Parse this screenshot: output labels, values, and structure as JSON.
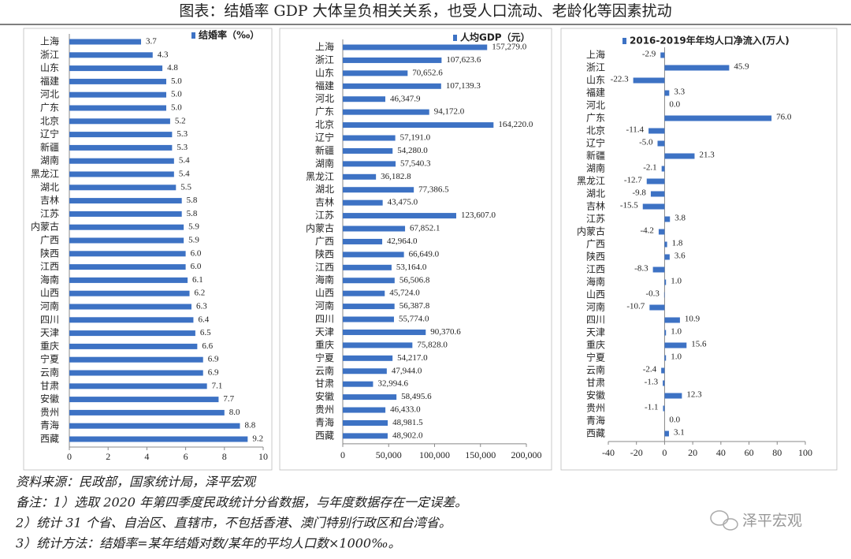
{
  "title": "图表：结婚率 GDP 大体呈负相关关系，也受人口流动、老龄化等因素扰动",
  "notes": [
    "资料来源：民政部，国家统计局，泽平宏观",
    "备注：1）选取 2020 年第四季度民政统计分省数据，与年度数据存在一定误差。",
    "2）统计 31 个省、自治区、直辖市，不包括香港、澳门特别行政区和台湾省。",
    "3）统计方法：结婚率=某年结婚对数/某年的平均人口数×1000‰。"
  ],
  "watermark": "泽平宏观",
  "chart_data": [
    {
      "type": "bar",
      "orientation": "horizontal",
      "categories": [
        "上海",
        "浙江",
        "山东",
        "福建",
        "河北",
        "广东",
        "北京",
        "辽宁",
        "新疆",
        "湖南",
        "黑龙江",
        "湖北",
        "吉林",
        "江苏",
        "内蒙古",
        "广西",
        "陕西",
        "江西",
        "海南",
        "山西",
        "河南",
        "四川",
        "天津",
        "重庆",
        "宁夏",
        "云南",
        "甘肃",
        "安徽",
        "贵州",
        "青海",
        "西藏"
      ],
      "series": [
        {
          "name": "结婚率（‰）",
          "color": "#3d72c4",
          "values": [
            3.7,
            4.3,
            4.8,
            5.0,
            5.0,
            5.0,
            5.2,
            5.3,
            5.3,
            5.4,
            5.4,
            5.5,
            5.8,
            5.8,
            5.9,
            5.9,
            6.0,
            6.0,
            6.1,
            6.2,
            6.3,
            6.4,
            6.5,
            6.6,
            6.9,
            6.9,
            7.1,
            7.7,
            8.0,
            8.8,
            9.2
          ],
          "value_labels": [
            "3.7",
            "4.3",
            "4.8",
            "5.0",
            "5.0",
            "5.0",
            "5.2",
            "5.3",
            "5.3",
            "5.4",
            "5.4",
            "5.5",
            "5.8",
            "5.8",
            "5.9",
            "5.9",
            "6.0",
            "6.0",
            "6.1",
            "6.2",
            "6.3",
            "6.4",
            "6.5",
            "6.6",
            "6.9",
            "6.9",
            "7.1",
            "7.7",
            "8.0",
            "8.8",
            "9.2"
          ]
        }
      ],
      "xlim": [
        0,
        10
      ],
      "xticks": [
        0,
        2,
        4,
        6,
        8,
        10
      ]
    },
    {
      "type": "bar",
      "orientation": "horizontal",
      "categories": [
        "上海",
        "浙江",
        "山东",
        "福建",
        "河北",
        "广东",
        "北京",
        "辽宁",
        "新疆",
        "湖南",
        "黑龙江",
        "湖北",
        "吉林",
        "江苏",
        "内蒙古",
        "广西",
        "陕西",
        "江西",
        "海南",
        "山西",
        "河南",
        "四川",
        "天津",
        "重庆",
        "宁夏",
        "云南",
        "甘肃",
        "安徽",
        "贵州",
        "青海",
        "西藏"
      ],
      "series": [
        {
          "name": "人均GDP（元）",
          "color": "#3d72c4",
          "values": [
            157279.0,
            107623.6,
            70652.6,
            107139.3,
            46347.9,
            94172.0,
            164220.0,
            57191.0,
            54280.0,
            57540.3,
            36182.8,
            77386.5,
            43475.0,
            123607.0,
            67852.1,
            42964.0,
            66649.0,
            53164.0,
            56506.8,
            45724.0,
            56387.8,
            55774.0,
            90370.6,
            75828.0,
            54217.0,
            47944.0,
            32994.6,
            58495.6,
            46433.0,
            48981.5,
            48902.0
          ],
          "value_labels": [
            "157,279.0",
            "107,623.6",
            "70,652.6",
            "107,139.3",
            "46,347.9",
            "94,172.0",
            "164,220.0",
            "57,191.0",
            "54,280.0",
            "57,540.3",
            "36,182.8",
            "77,386.5",
            "43,475.0",
            "123,607.0",
            "67,852.1",
            "42,964.0",
            "66,649.0",
            "53,164.0",
            "56,506.8",
            "45,724.0",
            "56,387.8",
            "55,774.0",
            "90,370.6",
            "75,828.0",
            "54,217.0",
            "47,944.0",
            "32,994.6",
            "58,495.6",
            "46,433.0",
            "48,981.5",
            "48,902.0"
          ]
        }
      ],
      "xlim": [
        0,
        200000
      ],
      "xticks": [
        0,
        {
          "value": 50000,
          "label": "50,000"
        },
        {
          "value": 100000,
          "label": "100,000"
        },
        {
          "value": 150000,
          "label": "150,000"
        },
        {
          "value": 200000,
          "label": "200,000"
        }
      ]
    },
    {
      "type": "bar",
      "orientation": "horizontal",
      "categories": [
        "上海",
        "浙江",
        "山东",
        "福建",
        "河北",
        "广东",
        "北京",
        "辽宁",
        "新疆",
        "湖南",
        "黑龙江",
        "湖北",
        "吉林",
        "江苏",
        "内蒙古",
        "广西",
        "陕西",
        "江西",
        "海南",
        "山西",
        "河南",
        "四川",
        "天津",
        "重庆",
        "宁夏",
        "云南",
        "甘肃",
        "安徽",
        "贵州",
        "青海",
        "西藏"
      ],
      "series": [
        {
          "name": "2016-2019年年均人口净流入(万人)",
          "color": "#3d72c4",
          "values": [
            -2.9,
            45.9,
            -22.3,
            3.3,
            0.0,
            76.0,
            -11.4,
            -5.0,
            21.3,
            -2.1,
            -12.7,
            -9.8,
            -15.5,
            3.8,
            -4.2,
            1.8,
            3.6,
            -8.3,
            1.0,
            -0.3,
            -10.7,
            10.9,
            1.0,
            15.6,
            1.0,
            -2.4,
            -1.3,
            12.3,
            -1.1,
            0.0,
            3.1
          ],
          "value_labels": [
            "-2.9",
            "45.9",
            "-22.3",
            "3.3",
            "0.0",
            "76.0",
            "-11.4",
            "-5.0",
            "21.3",
            "-2.1",
            "-12.7",
            "-9.8",
            "-15.5",
            "3.8",
            "-4.2",
            "1.8",
            "3.6",
            "-8.3",
            "1.0",
            "-0.3",
            "-10.7",
            "10.9",
            "1.0",
            "15.6",
            "1.0",
            "-2.4",
            "-1.3",
            "12.3",
            "-1.1",
            "0.0",
            "3.1"
          ]
        }
      ],
      "xlim": [
        -40,
        100
      ],
      "xticks": [
        -40,
        -20,
        0,
        20,
        40,
        60,
        80,
        100
      ]
    }
  ]
}
